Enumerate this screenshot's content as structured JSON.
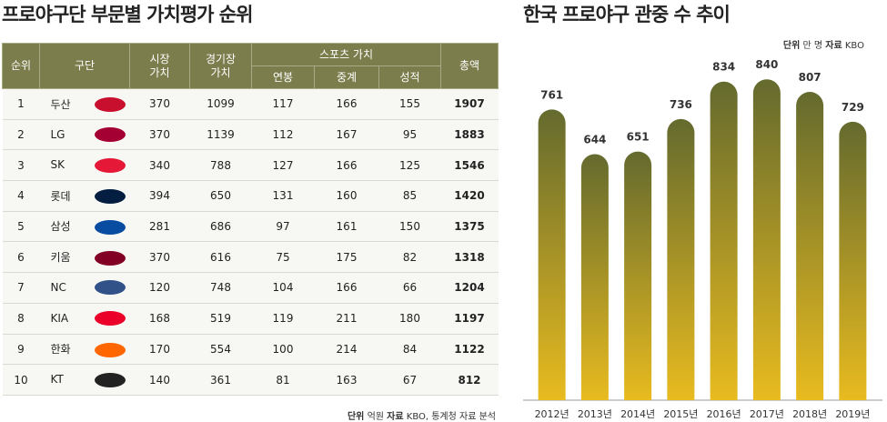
{
  "table": {
    "title": "프로야구단 부문별 가치평가 순위",
    "headers": [
      "순위",
      "구단",
      "시장\n가치",
      "경기장\n가치",
      "스포츠 가치",
      "총액"
    ],
    "subheaders": [
      "연봉",
      "중계",
      "성적"
    ],
    "rows": [
      [
        1,
        "두산",
        370,
        1099,
        117,
        166,
        155,
        1907
      ],
      [
        2,
        "LG",
        370,
        1139,
        112,
        167,
        95,
        1883
      ],
      [
        3,
        "SK",
        340,
        788,
        127,
        166,
        125,
        1546
      ],
      [
        4,
        "롯데",
        394,
        650,
        131,
        160,
        85,
        1420
      ],
      [
        5,
        "삼성",
        281,
        686,
        97,
        161,
        150,
        1375
      ],
      [
        6,
        "키움",
        370,
        616,
        75,
        175,
        82,
        1318
      ],
      [
        7,
        "NC",
        120,
        748,
        104,
        166,
        66,
        1204
      ],
      [
        8,
        "KIA",
        168,
        519,
        119,
        211,
        180,
        1197
      ],
      [
        9,
        "한화",
        170,
        554,
        100,
        214,
        84,
        1122
      ],
      [
        10,
        "KT",
        140,
        361,
        81,
        163,
        67,
        812
      ]
    ],
    "note": {
      "unit_label": "단위",
      "unit": "억원",
      "source_label": "자료",
      "source": "KBO, 통계청 자료 분석"
    }
  },
  "chart_data": {
    "type": "bar",
    "title": "한국 프로야구 관중 수 추이",
    "note": {
      "unit_label": "단위",
      "unit": "만 명",
      "source_label": "자료",
      "source": "KBO"
    },
    "categories": [
      "2012년",
      "2013년",
      "2014년",
      "2015년",
      "2016년",
      "2017년",
      "2018년",
      "2019년"
    ],
    "values": [
      761,
      644,
      651,
      736,
      834,
      840,
      807,
      729
    ],
    "color_top": "#646a2e",
    "color_bottom": "#e8bb1f",
    "ylim": [
      0,
      900
    ]
  }
}
